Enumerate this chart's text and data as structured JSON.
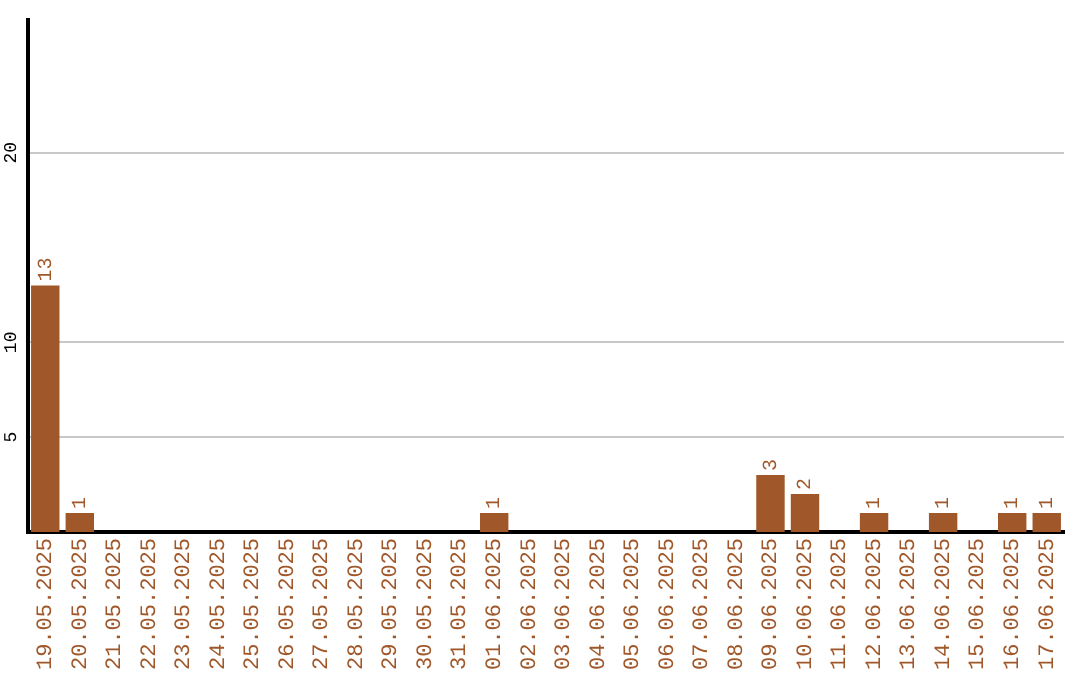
{
  "chart_data": {
    "type": "bar",
    "categories": [
      "19.05.2025",
      "20.05.2025",
      "21.05.2025",
      "22.05.2025",
      "23.05.2025",
      "24.05.2025",
      "25.05.2025",
      "26.05.2025",
      "27.05.2025",
      "28.05.2025",
      "29.05.2025",
      "30.05.2025",
      "31.05.2025",
      "01.06.2025",
      "02.06.2025",
      "03.06.2025",
      "04.06.2025",
      "05.06.2025",
      "06.06.2025",
      "07.06.2025",
      "08.06.2025",
      "09.06.2025",
      "10.06.2025",
      "11.06.2025",
      "12.06.2025",
      "13.06.2025",
      "14.06.2025",
      "15.06.2025",
      "16.06.2025",
      "17.06.2025"
    ],
    "values": [
      13,
      1,
      0,
      0,
      0,
      0,
      0,
      0,
      0,
      0,
      0,
      0,
      0,
      1,
      0,
      0,
      0,
      0,
      0,
      0,
      0,
      3,
      2,
      0,
      1,
      0,
      1,
      0,
      1,
      1
    ],
    "value_labels": [
      "13",
      "1",
      null,
      null,
      null,
      null,
      null,
      null,
      null,
      null,
      null,
      null,
      null,
      "1",
      null,
      null,
      null,
      null,
      null,
      null,
      null,
      "3",
      "2",
      null,
      "1",
      null,
      "1",
      null,
      "1",
      "1"
    ],
    "color": "#a0582a",
    "ylim": [
      0,
      27
    ],
    "yticks": [
      5,
      10,
      20
    ],
    "grid": "y",
    "legend": false
  }
}
